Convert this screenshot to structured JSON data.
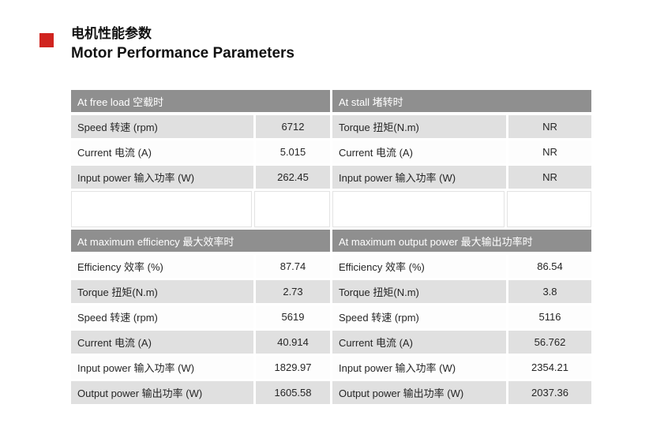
{
  "page": {
    "title_zh": "电机性能参数",
    "title_en": "Motor Performance Parameters"
  },
  "colors": {
    "header-bg": "#8f8f8f",
    "header-text": "#ffffff",
    "row-gray": "#e0e0e0",
    "row-white": "#fdfdfd",
    "cell-text": "#262626",
    "accent": "#d0241f"
  },
  "tables": {
    "free_load": {
      "header": "At free load 空载时",
      "rows": [
        {
          "label": "Speed 转速 (rpm)",
          "value": "6712"
        },
        {
          "label": "Current 电流 (A)",
          "value": "5.015"
        },
        {
          "label": "Input power 输入功率 (W)",
          "value": "262.45"
        }
      ]
    },
    "stall": {
      "header": "At stall 堵转时",
      "rows": [
        {
          "label": "Torque 扭矩(N.m)",
          "value": "NR"
        },
        {
          "label": "Current 电流 (A)",
          "value": "NR"
        },
        {
          "label": "Input power 输入功率 (W)",
          "value": "NR"
        }
      ]
    },
    "max_efficiency": {
      "header": "At maximum efficiency 最大效率时",
      "rows": [
        {
          "label": "Efficiency 效率 (%)",
          "value": "87.74"
        },
        {
          "label": "Torque 扭矩(N.m)",
          "value": "2.73"
        },
        {
          "label": "Speed 转速 (rpm)",
          "value": "5619"
        },
        {
          "label": "Current 电流 (A)",
          "value": "40.914"
        },
        {
          "label": "Input power 输入功率 (W)",
          "value": "1829.97"
        },
        {
          "label": "Output power 输出功率 (W)",
          "value": "1605.58"
        }
      ]
    },
    "max_output_power": {
      "header": "At maximum output power 最大输出功率时",
      "rows": [
        {
          "label": "Efficiency 效率 (%)",
          "value": "86.54"
        },
        {
          "label": "Torque 扭矩(N.m)",
          "value": "3.8"
        },
        {
          "label": "Speed 转速 (rpm)",
          "value": "5116"
        },
        {
          "label": "Current 电流 (A)",
          "value": "56.762"
        },
        {
          "label": "Input power 输入功率 (W)",
          "value": "2354.21"
        },
        {
          "label": "Output power 输出功率 (W)",
          "value": "2037.36"
        }
      ]
    }
  }
}
